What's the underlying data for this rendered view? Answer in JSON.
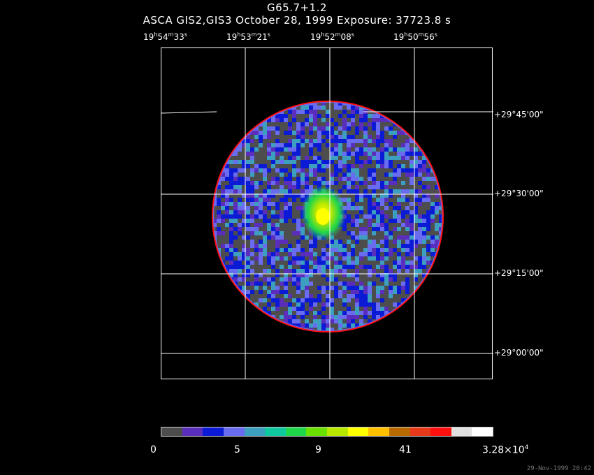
{
  "header": {
    "object": "G65.7+1.2",
    "subtitle": "ASCA GIS2,GIS3 October 28, 1999 Exposure: 37723.8 s"
  },
  "ra_labels": [
    {
      "h": "19",
      "m": "54",
      "s": "33"
    },
    {
      "h": "19",
      "m": "53",
      "s": "21"
    },
    {
      "h": "19",
      "m": "52",
      "s": "08"
    },
    {
      "h": "19",
      "m": "50",
      "s": "56"
    }
  ],
  "dec_labels": [
    "+29°45'00\"",
    "+29°30'00\"",
    "+29°15'00\"",
    "+29°00'00\""
  ],
  "colorbar": {
    "colors": [
      "#4d4d4d",
      "#5a2dbd",
      "#0b1ad4",
      "#6a6cf0",
      "#3c9fc0",
      "#10c8a0",
      "#1fd64a",
      "#69e000",
      "#b8e800",
      "#ffff00",
      "#ffc000",
      "#b86a00",
      "#e83a1a",
      "#ff1010",
      "#e0e0e0",
      "#ffffff"
    ],
    "labels": [
      "0",
      "5",
      "9",
      "41"
    ],
    "max_label": "3.28×10",
    "max_exp": "4"
  },
  "stamp": "29-Nov-1999 20:42"
}
